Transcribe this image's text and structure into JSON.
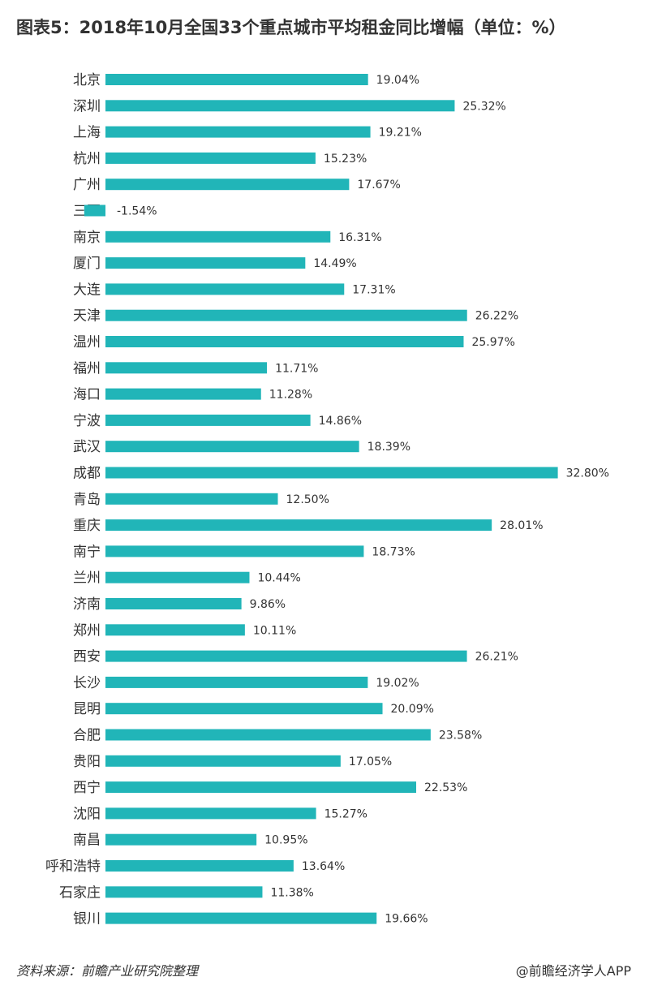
{
  "title": "图表5：2018年10月全国33个重点城市平均租金同比增幅（单位：%）",
  "footer": {
    "source": "资料来源：前瞻产业研究院整理",
    "brand": "@前瞻经济学人APP"
  },
  "colors": {
    "bar": "#21B5B8"
  },
  "chart_data": {
    "type": "bar",
    "orientation": "horizontal",
    "title": "图表5：2018年10月全国33个重点城市平均租金同比增幅（单位：%）",
    "xlabel": "",
    "ylabel": "",
    "grid": false,
    "legend": "none",
    "xlim": [
      -2,
      35
    ],
    "categories": [
      "北京",
      "深圳",
      "上海",
      "杭州",
      "广州",
      "三亚",
      "南京",
      "厦门",
      "大连",
      "天津",
      "温州",
      "福州",
      "海口",
      "宁波",
      "武汉",
      "成都",
      "青岛",
      "重庆",
      "南宁",
      "兰州",
      "济南",
      "郑州",
      "西安",
      "长沙",
      "昆明",
      "合肥",
      "贵阳",
      "西宁",
      "沈阳",
      "南昌",
      "呼和浩特",
      "石家庄",
      "银川"
    ],
    "values": [
      19.04,
      25.32,
      19.21,
      15.23,
      17.67,
      -1.54,
      16.31,
      14.49,
      17.31,
      26.22,
      25.97,
      11.71,
      11.28,
      14.86,
      18.39,
      32.8,
      12.5,
      28.01,
      18.73,
      10.44,
      9.86,
      10.11,
      26.21,
      19.02,
      20.09,
      23.58,
      17.05,
      22.53,
      15.27,
      10.95,
      13.64,
      11.38,
      19.66
    ],
    "value_labels": [
      "19.04%",
      "25.32%",
      "19.21%",
      "15.23%",
      "17.67%",
      "-1.54%",
      "16.31%",
      "14.49%",
      "17.31%",
      "26.22%",
      "25.97%",
      "11.71%",
      "11.28%",
      "14.86%",
      "18.39%",
      "32.80%",
      "12.50%",
      "28.01%",
      "18.73%",
      "10.44%",
      "9.86%",
      "10.11%",
      "26.21%",
      "19.02%",
      "20.09%",
      "23.58%",
      "17.05%",
      "22.53%",
      "15.27%",
      "10.95%",
      "13.64%",
      "11.38%",
      "19.66%"
    ]
  }
}
